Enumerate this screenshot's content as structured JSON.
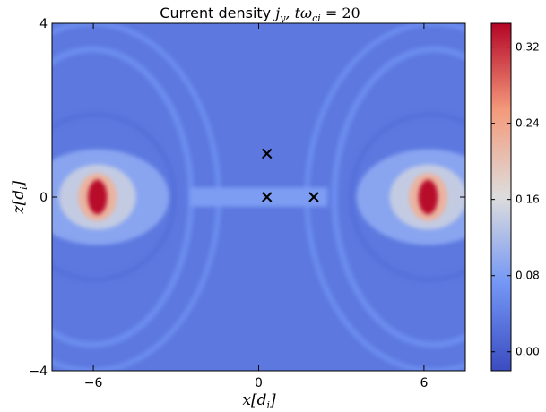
{
  "chart_data": {
    "type": "heatmap",
    "title": "Current density j_y, tω_ci = 20",
    "title_main": "Current density ",
    "title_math": "j",
    "title_sub": "y",
    "title_t": ", tω",
    "title_t_sub": "ci",
    "title_eq": " = 20",
    "xlabel": "x[d_i]",
    "xlabel_main": "x[d",
    "xlabel_sub": "i",
    "xlabel_close": "]",
    "ylabel": "z[d_i]",
    "ylabel_main": "z[d",
    "ylabel_sub": "i",
    "ylabel_close": "]",
    "xlim": [
      -7.5,
      7.5
    ],
    "ylim": [
      -4,
      4
    ],
    "x_ticks": [
      -6,
      0,
      6
    ],
    "x_tick_labels": [
      "−6",
      "0",
      "6"
    ],
    "y_ticks": [
      -4,
      0,
      4
    ],
    "y_tick_labels": [
      "−4",
      "0",
      "4"
    ],
    "colormap": "coolwarm",
    "colorbar": {
      "range": [
        -0.02,
        0.345
      ],
      "ticks": [
        0.0,
        0.08,
        0.16,
        0.24,
        0.32
      ],
      "tick_labels": [
        "0.00",
        "0.08",
        "0.16",
        "0.24",
        "0.32"
      ]
    },
    "markers": {
      "symbol": "x",
      "color": "#000000",
      "points": [
        {
          "x": 0.3,
          "z": 1.0
        },
        {
          "x": 0.3,
          "z": 0.0
        },
        {
          "x": 2.0,
          "z": 0.0
        }
      ]
    },
    "features": {
      "background_level": 0.035,
      "current_sheet": {
        "z": 0.0,
        "half_thickness": 0.22,
        "x_extent": [
          -2.5,
          2.5
        ],
        "level": 0.08
      },
      "peaks": [
        {
          "x": -5.85,
          "z": 0.0,
          "level": 0.34
        },
        {
          "x": 6.15,
          "z": 0.0,
          "level": 0.34
        }
      ]
    }
  }
}
